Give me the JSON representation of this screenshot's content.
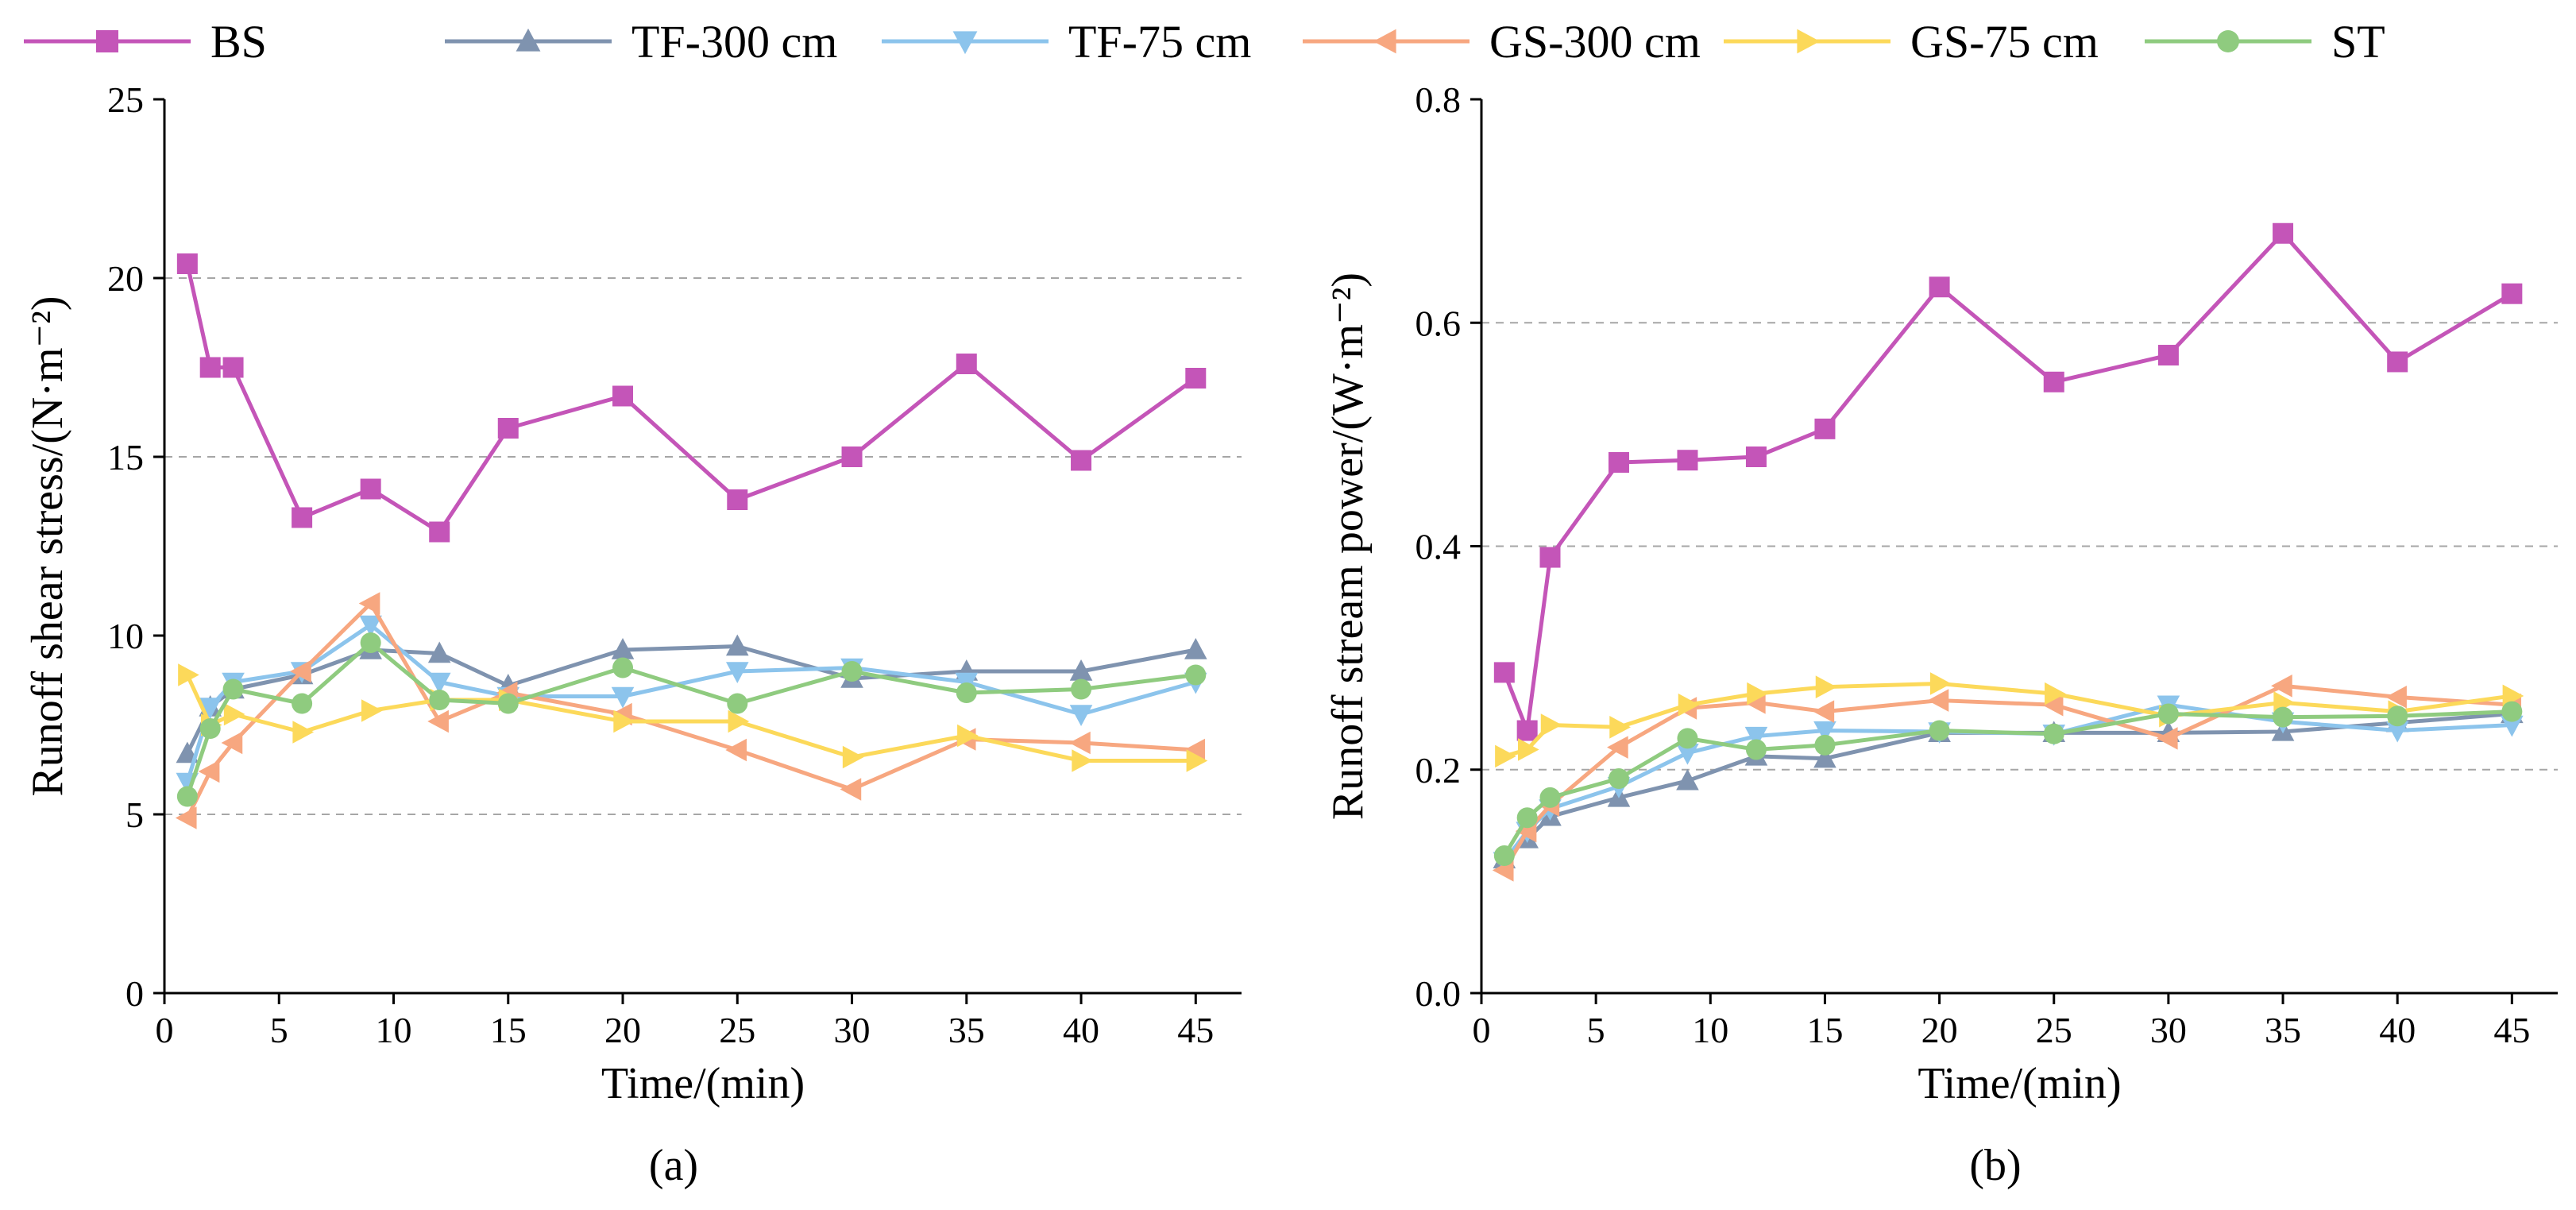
{
  "legend": [
    {
      "name": "BS",
      "color": "#C455B8",
      "marker": "square"
    },
    {
      "name": "TF-300 cm",
      "color": "#7F93AF",
      "marker": "triangle-up"
    },
    {
      "name": "TF-75 cm",
      "color": "#8CC4EC",
      "marker": "triangle-down"
    },
    {
      "name": "GS-300 cm",
      "color": "#F7A780",
      "marker": "triangle-left"
    },
    {
      "name": "GS-75 cm",
      "color": "#FCD95A",
      "marker": "triangle-right"
    },
    {
      "name": "ST",
      "color": "#8FCB7F",
      "marker": "circle"
    }
  ],
  "chart_data": [
    {
      "type": "line",
      "panel_label": "(a)",
      "xlabel": "Time/(min)",
      "ylabel": "Runoff shear stress/(N·m⁻²)",
      "xlim": [
        0,
        47
      ],
      "ylim": [
        0,
        25
      ],
      "xticks": [
        0,
        5,
        10,
        15,
        20,
        25,
        30,
        35,
        40,
        45
      ],
      "yticks": [
        0,
        5,
        10,
        15,
        20,
        25
      ],
      "ytick_labels": [
        "0",
        "5",
        "10",
        "15",
        "20",
        "25"
      ],
      "grid_y": [
        5,
        15,
        20
      ],
      "x": [
        1,
        2,
        3,
        6,
        9,
        12,
        15,
        20,
        25,
        30,
        35,
        40,
        45
      ],
      "series": [
        {
          "name": "BS",
          "values": [
            20.4,
            17.5,
            17.5,
            13.3,
            14.1,
            12.9,
            15.8,
            16.7,
            13.8,
            15.0,
            17.6,
            14.9,
            17.2
          ]
        },
        {
          "name": "TF-300 cm",
          "values": [
            6.7,
            8.0,
            8.5,
            8.9,
            9.6,
            9.5,
            8.6,
            9.6,
            9.7,
            8.8,
            9.0,
            9.0,
            9.6
          ]
        },
        {
          "name": "TF-75 cm",
          "values": [
            5.9,
            8.0,
            8.7,
            9.0,
            10.3,
            8.7,
            8.3,
            8.3,
            9.0,
            9.1,
            8.7,
            7.8,
            8.7
          ]
        },
        {
          "name": "GS-300 cm",
          "values": [
            4.9,
            6.2,
            7.0,
            9.0,
            10.9,
            7.6,
            8.4,
            7.8,
            6.8,
            5.7,
            7.1,
            7.0,
            6.8
          ]
        },
        {
          "name": "GS-75 cm",
          "values": [
            8.9,
            7.5,
            7.8,
            7.3,
            7.9,
            8.2,
            8.2,
            7.6,
            7.6,
            6.6,
            7.2,
            6.5,
            6.5
          ]
        },
        {
          "name": "ST",
          "values": [
            5.5,
            7.4,
            8.5,
            8.1,
            9.8,
            8.2,
            8.1,
            9.1,
            8.1,
            9.0,
            8.4,
            8.5,
            8.9
          ]
        }
      ]
    },
    {
      "type": "line",
      "panel_label": "(b)",
      "xlabel": "Time/(min)",
      "ylabel": "Runoff stream power/(W·m⁻²)",
      "xlim": [
        0,
        47
      ],
      "ylim": [
        0,
        0.8
      ],
      "xticks": [
        0,
        5,
        10,
        15,
        20,
        25,
        30,
        35,
        40,
        45
      ],
      "yticks": [
        0,
        0.2,
        0.4,
        0.6,
        0.8
      ],
      "ytick_labels": [
        "0.0",
        "0.2",
        "0.4",
        "0.6",
        "0.8"
      ],
      "grid_y": [
        0.2,
        0.4,
        0.6
      ],
      "x": [
        1,
        2,
        3,
        6,
        9,
        12,
        15,
        20,
        25,
        30,
        35,
        40,
        45
      ],
      "series": [
        {
          "name": "BS",
          "values": [
            0.287,
            0.235,
            0.39,
            0.475,
            0.477,
            0.48,
            0.505,
            0.632,
            0.547,
            0.571,
            0.68,
            0.565,
            0.626
          ]
        },
        {
          "name": "TF-300 cm",
          "values": [
            0.12,
            0.138,
            0.158,
            0.175,
            0.19,
            0.212,
            0.21,
            0.233,
            0.233,
            0.233,
            0.234,
            0.242,
            0.25
          ]
        },
        {
          "name": "TF-75 cm",
          "values": [
            0.118,
            0.145,
            0.165,
            0.185,
            0.215,
            0.23,
            0.235,
            0.234,
            0.232,
            0.258,
            0.243,
            0.235,
            0.24
          ]
        },
        {
          "name": "GS-300 cm",
          "values": [
            0.11,
            0.145,
            0.168,
            0.22,
            0.255,
            0.26,
            0.252,
            0.262,
            0.258,
            0.228,
            0.275,
            0.265,
            0.258
          ]
        },
        {
          "name": "GS-75 cm",
          "values": [
            0.212,
            0.218,
            0.24,
            0.238,
            0.258,
            0.268,
            0.274,
            0.277,
            0.268,
            0.248,
            0.26,
            0.252,
            0.266
          ]
        },
        {
          "name": "ST",
          "values": [
            0.123,
            0.157,
            0.175,
            0.192,
            0.228,
            0.218,
            0.222,
            0.235,
            0.232,
            0.25,
            0.247,
            0.248,
            0.252
          ]
        }
      ]
    }
  ]
}
